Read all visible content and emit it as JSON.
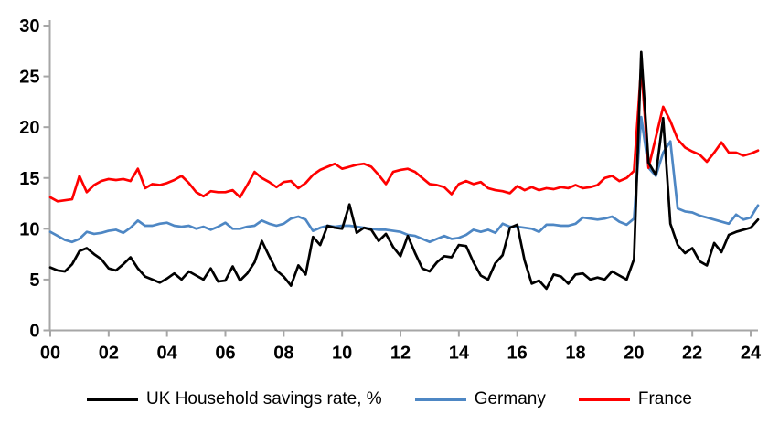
{
  "chart_data": {
    "type": "line",
    "title": "",
    "x_unit": "quarterly",
    "x_start_year": 2000,
    "x_end": 2024.25,
    "ylim": [
      0,
      30
    ],
    "y_tick_values": [
      0,
      5,
      10,
      15,
      20,
      25,
      30
    ],
    "y_tick_labels": [
      "0",
      "5",
      "10",
      "15",
      "20",
      "25",
      "30"
    ],
    "x_tick_years": [
      2000,
      2002,
      2004,
      2006,
      2008,
      2010,
      2012,
      2014,
      2016,
      2018,
      2020,
      2022,
      2024
    ],
    "x_tick_labels": [
      "00",
      "02",
      "04",
      "06",
      "08",
      "10",
      "12",
      "14",
      "16",
      "18",
      "20",
      "22",
      "24"
    ],
    "grid": false,
    "legend_position": "bottom",
    "axis_color": "#a6a6a6",
    "series": [
      {
        "name": "UK Household savings rate, %",
        "color": "#000000",
        "values": [
          6.2,
          5.9,
          5.8,
          6.5,
          7.8,
          8.1,
          7.5,
          7.0,
          6.1,
          5.9,
          6.5,
          7.2,
          6.1,
          5.3,
          5.0,
          4.7,
          5.1,
          5.6,
          5.0,
          5.8,
          5.4,
          5.0,
          6.1,
          4.8,
          4.9,
          6.3,
          4.9,
          5.6,
          6.7,
          8.8,
          7.3,
          5.9,
          5.3,
          4.4,
          6.4,
          5.5,
          9.2,
          8.4,
          10.3,
          10.1,
          10.0,
          12.4,
          9.6,
          10.1,
          9.9,
          8.8,
          9.5,
          8.2,
          7.3,
          9.3,
          7.6,
          6.1,
          5.8,
          6.7,
          7.3,
          7.2,
          8.4,
          8.3,
          6.7,
          5.4,
          5.0,
          6.6,
          7.4,
          10.1,
          10.4,
          6.9,
          4.6,
          4.9,
          4.1,
          5.5,
          5.3,
          4.6,
          5.5,
          5.6,
          5.0,
          5.2,
          5.0,
          5.8,
          5.4,
          5.0,
          7.0,
          27.4,
          16.5,
          15.3,
          20.9,
          10.5,
          8.4,
          7.6,
          8.1,
          6.8,
          6.4,
          8.6,
          7.7,
          9.4,
          9.7,
          9.9,
          10.1,
          10.9
        ]
      },
      {
        "name": "Germany",
        "color": "#4e87c4",
        "values": [
          9.7,
          9.3,
          8.9,
          8.7,
          9.0,
          9.7,
          9.5,
          9.6,
          9.8,
          9.9,
          9.6,
          10.1,
          10.8,
          10.3,
          10.3,
          10.5,
          10.6,
          10.3,
          10.2,
          10.3,
          10.0,
          10.2,
          9.9,
          10.2,
          10.6,
          10.0,
          10.0,
          10.2,
          10.3,
          10.8,
          10.5,
          10.3,
          10.5,
          11.0,
          11.2,
          10.9,
          9.8,
          10.1,
          10.3,
          10.2,
          10.3,
          10.3,
          10.2,
          10.1,
          10.0,
          9.9,
          9.9,
          9.8,
          9.7,
          9.4,
          9.3,
          9.0,
          8.7,
          9.0,
          9.3,
          9.0,
          9.1,
          9.4,
          9.9,
          9.7,
          9.9,
          9.6,
          10.5,
          10.2,
          10.2,
          10.1,
          10.0,
          9.7,
          10.4,
          10.4,
          10.3,
          10.3,
          10.5,
          11.1,
          11.0,
          10.9,
          11.0,
          11.2,
          10.7,
          10.4,
          11.0,
          21.0,
          16.0,
          15.2,
          17.5,
          18.6,
          12.0,
          11.7,
          11.6,
          11.3,
          11.1,
          10.9,
          10.7,
          10.5,
          11.4,
          10.9,
          11.1,
          12.3
        ]
      },
      {
        "name": "France",
        "color": "#ff0000",
        "values": [
          13.1,
          12.7,
          12.8,
          12.9,
          15.2,
          13.6,
          14.3,
          14.7,
          14.9,
          14.8,
          14.9,
          14.7,
          15.9,
          14.0,
          14.4,
          14.3,
          14.5,
          14.8,
          15.2,
          14.5,
          13.6,
          13.2,
          13.7,
          13.6,
          13.6,
          13.8,
          13.1,
          14.3,
          15.6,
          15.0,
          14.6,
          14.1,
          14.6,
          14.7,
          14.0,
          14.5,
          15.3,
          15.8,
          16.1,
          16.4,
          15.9,
          16.1,
          16.3,
          16.4,
          16.1,
          15.3,
          14.4,
          15.6,
          15.8,
          15.9,
          15.6,
          15.0,
          14.4,
          14.3,
          14.1,
          13.4,
          14.4,
          14.7,
          14.4,
          14.6,
          14.0,
          13.8,
          13.7,
          13.5,
          14.2,
          13.8,
          14.1,
          13.8,
          14.0,
          13.9,
          14.1,
          14.0,
          14.3,
          14.0,
          14.1,
          14.3,
          15.0,
          15.2,
          14.7,
          15.0,
          15.7,
          26.0,
          16.0,
          19.0,
          22.0,
          20.6,
          18.8,
          18.0,
          17.6,
          17.3,
          16.6,
          17.5,
          18.5,
          17.5,
          17.5,
          17.2,
          17.4,
          17.7
        ]
      }
    ]
  }
}
